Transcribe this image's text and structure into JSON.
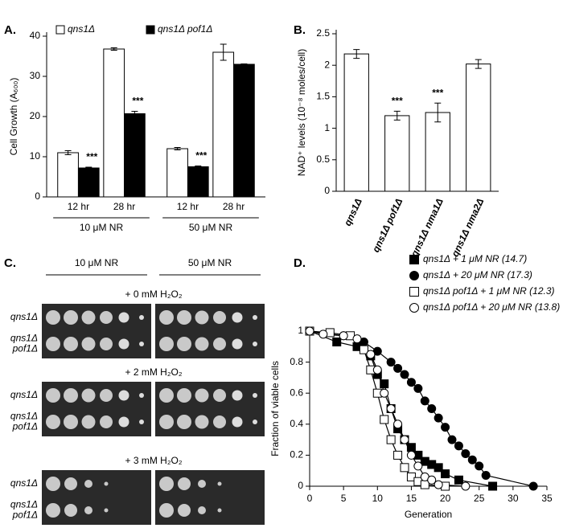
{
  "chart_data": [
    {
      "type": "bar",
      "label": "A.",
      "ylabel": "Cell Growth (A₆₀₀)",
      "categories": [
        "12 hr",
        "28 hr",
        "12 hr",
        "28 hr"
      ],
      "groups": [
        "10 μM NR",
        "50 μM NR"
      ],
      "series": [
        {
          "name": "qns1Δ",
          "color": "#ffffff",
          "values": [
            11,
            36.8,
            12,
            36
          ],
          "errors": [
            0.5,
            0.3,
            0.3,
            2
          ]
        },
        {
          "name": "qns1Δ pof1Δ",
          "color": "#000000",
          "values": [
            7.2,
            20.7,
            7.5,
            33
          ],
          "errors": [
            0.2,
            0.6,
            0.2,
            0.1
          ],
          "annotations": [
            "***",
            "***",
            "***",
            null
          ]
        }
      ],
      "ylim": [
        0,
        40
      ],
      "yticks": [
        0,
        10,
        20,
        30,
        40
      ]
    },
    {
      "type": "bar",
      "label": "B.",
      "ylabel": "NAD⁺ levels (10⁻⁸ moles/cell)",
      "categories": [
        "qns1Δ",
        "qns1Δ pof1Δ",
        "qns1Δ nma1Δ",
        "qns1Δ nma2Δ"
      ],
      "series": [
        {
          "color": "#ffffff",
          "values": [
            2.18,
            1.2,
            1.25,
            2.02
          ],
          "errors": [
            0.07,
            0.07,
            0.15,
            0.07
          ],
          "annotations": [
            null,
            "***",
            "***",
            null
          ]
        }
      ],
      "ylim": [
        0,
        2.5
      ],
      "yticks": [
        0,
        0.5,
        1,
        1.5,
        2,
        2.5
      ]
    },
    {
      "type": "line",
      "label": "D.",
      "xlabel": "Generation",
      "ylabel": "Fraction of viable cells",
      "series": [
        {
          "name": "qns1Δ + 1 μM NR (14.7)",
          "marker": "square",
          "color": "#000000",
          "x": [
            0,
            4,
            7,
            9,
            10,
            11,
            12,
            13,
            14,
            15,
            16,
            17,
            18,
            19,
            20,
            22,
            27
          ],
          "values": [
            1,
            0.93,
            0.9,
            0.84,
            0.72,
            0.66,
            0.5,
            0.37,
            0.3,
            0.25,
            0.2,
            0.16,
            0.14,
            0.12,
            0.08,
            0.04,
            0
          ]
        },
        {
          "name": "qns1Δ + 20 μM NR (17.3)",
          "marker": "circle",
          "color": "#000000",
          "x": [
            0,
            5,
            8,
            10,
            12,
            13,
            14,
            15,
            16,
            17,
            18,
            19,
            20,
            21,
            22,
            23,
            24,
            25,
            26,
            33
          ],
          "values": [
            1,
            0.97,
            0.93,
            0.87,
            0.8,
            0.76,
            0.72,
            0.67,
            0.63,
            0.55,
            0.5,
            0.44,
            0.38,
            0.3,
            0.26,
            0.21,
            0.17,
            0.13,
            0.07,
            0
          ]
        },
        {
          "name": "qns1Δ pof1Δ + 1 μM NR (12.3)",
          "marker": "square",
          "color": "#ffffff",
          "x": [
            0,
            3,
            6,
            8,
            9,
            10,
            11,
            12,
            13,
            14,
            15,
            16,
            17,
            20
          ],
          "values": [
            1,
            0.99,
            0.97,
            0.88,
            0.75,
            0.6,
            0.43,
            0.3,
            0.2,
            0.12,
            0.06,
            0.03,
            0.01,
            0
          ]
        },
        {
          "name": "qns1Δ pof1Δ + 20 μM NR (13.8)",
          "marker": "circle",
          "color": "#ffffff",
          "x": [
            0,
            2,
            5,
            7,
            9,
            10,
            11,
            12,
            13,
            14,
            15,
            16,
            17,
            18,
            19,
            23
          ],
          "values": [
            1,
            0.98,
            0.97,
            0.95,
            0.85,
            0.75,
            0.6,
            0.5,
            0.4,
            0.3,
            0.2,
            0.13,
            0.06,
            0.04,
            0.01,
            0
          ]
        }
      ],
      "xlim": [
        0,
        35
      ],
      "xticks": [
        0,
        5,
        10,
        15,
        20,
        25,
        30,
        35
      ],
      "ylim": [
        0,
        1
      ],
      "yticks": [
        0,
        0.2,
        0.4,
        0.6,
        0.8,
        1
      ]
    }
  ],
  "panel_c": {
    "label": "C.",
    "columns": [
      "10 μM NR",
      "50 μM NR"
    ],
    "conditions": [
      {
        "title": "+ 0 mM H₂O₂",
        "strains": [
          [
            "qns1Δ"
          ],
          [
            "qns1Δ",
            "pof1Δ"
          ]
        ]
      },
      {
        "title": "+ 2 mM H₂O₂",
        "strains": [
          [
            "qns1Δ"
          ],
          [
            "qns1Δ",
            "pof1Δ"
          ]
        ]
      },
      {
        "title": "+ 3 mM H₂O₂",
        "strains": [
          [
            "qns1Δ"
          ],
          [
            "qns1Δ",
            "pof1Δ"
          ]
        ]
      }
    ]
  }
}
